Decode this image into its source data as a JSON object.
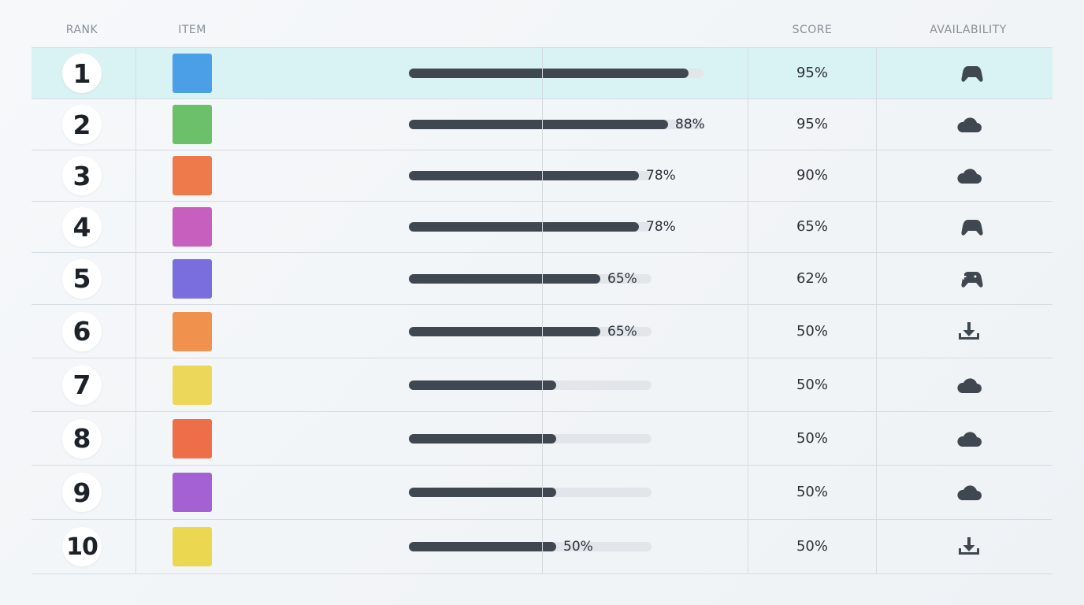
{
  "columns": {
    "rank": "RANK",
    "item": "ITEM",
    "score": "SCORE",
    "availability": "AVAILABILITY"
  },
  "colors": {
    "highlight_row": "#d9f2f3",
    "bar_fill": "#3f4850",
    "bar_track": "#e2e6ea"
  },
  "rows": [
    {
      "rank": "1",
      "color": "#4a9fe6",
      "progress": 0.95,
      "progress_label": "",
      "score": "95%",
      "availability_icon": "gamepad-icon",
      "highlighted": true
    },
    {
      "rank": "2",
      "color": "#6cc06a",
      "progress": 0.88,
      "progress_label": "88%",
      "score": "95%",
      "availability_icon": "cloud-icon"
    },
    {
      "rank": "3",
      "color": "#ee7a4c",
      "progress": 0.78,
      "progress_label": "78%",
      "score": "90%",
      "availability_icon": "cloud-icon"
    },
    {
      "rank": "4",
      "color": "#c75fbe",
      "progress": 0.78,
      "progress_label": "78%",
      "score": "65%",
      "availability_icon": "gamepad-icon"
    },
    {
      "rank": "5",
      "color": "#7a6ede",
      "progress": 0.65,
      "progress_label": "65%",
      "score": "62%",
      "availability_icon": "gamepad-plus-icon"
    },
    {
      "rank": "6",
      "color": "#f0924e",
      "progress": 0.65,
      "progress_label": "65%",
      "score": "50%",
      "availability_icon": "download-icon"
    },
    {
      "rank": "7",
      "color": "#ecd75a",
      "progress": 0.5,
      "progress_label": "",
      "score": "50%",
      "availability_icon": "cloud-icon"
    },
    {
      "rank": "8",
      "color": "#ef6e4a",
      "progress": 0.5,
      "progress_label": "",
      "score": "50%",
      "availability_icon": "cloud-icon"
    },
    {
      "rank": "9",
      "color": "#a461d3",
      "progress": 0.5,
      "progress_label": "",
      "score": "50%",
      "availability_icon": "cloud-icon"
    },
    {
      "rank": "10",
      "color": "#ecd850",
      "progress": 0.5,
      "progress_label": "50%",
      "score": "50%",
      "availability_icon": "download-icon"
    }
  ]
}
